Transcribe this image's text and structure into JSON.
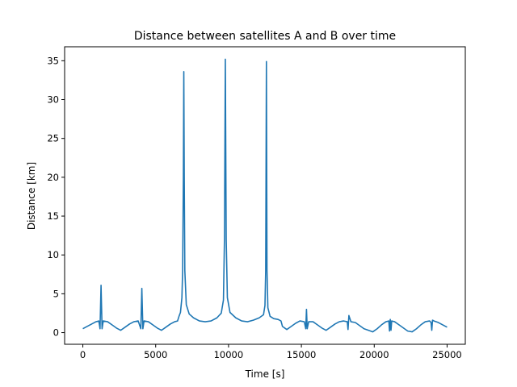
{
  "chart_data": {
    "type": "line",
    "title": "Distance between satellites A and B over time",
    "xlabel": "Time [s]",
    "ylabel": "Distance [km]",
    "xlim": [
      -1250,
      26250
    ],
    "ylim": [
      -1.5,
      36.8
    ],
    "xticks": [
      0,
      5000,
      10000,
      15000,
      20000,
      25000
    ],
    "yticks": [
      0,
      5,
      10,
      15,
      20,
      25,
      30,
      35
    ],
    "grid": false,
    "line_color": "#1f77b4",
    "series": [
      {
        "x": [
          0,
          300,
          600,
          900,
          1100,
          1180,
          1250,
          1320,
          1400,
          1700,
          2000,
          2300,
          2600,
          2900,
          3200,
          3500,
          3800,
          3980,
          4050,
          4120,
          4200,
          4500,
          4800,
          5100,
          5400,
          5700,
          6000,
          6300,
          6500,
          6600,
          6700,
          6800,
          6850,
          6900,
          6930,
          6960,
          7000,
          7100,
          7300,
          7600,
          8000,
          8400,
          8800,
          9200,
          9500,
          9650,
          9720,
          9780,
          9840,
          9920,
          10100,
          10500,
          10900,
          11300,
          11700,
          12100,
          12400,
          12500,
          12550,
          12600,
          12640,
          12700,
          12850,
          13100,
          13400,
          13600,
          13700,
          14000,
          14300,
          14600,
          14900,
          15200,
          15300,
          15350,
          15400,
          15500,
          15800,
          16100,
          16400,
          16700,
          17000,
          17300,
          17600,
          17900,
          18150,
          18200,
          18260,
          18400,
          18700,
          19000,
          19300,
          19600,
          19900,
          20200,
          20500,
          20800,
          21000,
          21050,
          21100,
          21150,
          21200,
          21400,
          21700,
          22000,
          22300,
          22600,
          22900,
          23200,
          23500,
          23800,
          23900,
          23950,
          24000,
          24100,
          24400,
          24700,
          25000
        ],
        "values": [
          0.5,
          0.8,
          1.1,
          1.4,
          1.5,
          0.5,
          6.1,
          0.5,
          1.5,
          1.4,
          1.0,
          0.6,
          0.3,
          0.7,
          1.1,
          1.4,
          1.5,
          0.5,
          5.7,
          0.5,
          1.5,
          1.4,
          1.0,
          0.6,
          0.3,
          0.7,
          1.1,
          1.4,
          1.5,
          2.1,
          2.6,
          4.5,
          8.0,
          20.0,
          33.6,
          20.0,
          8.0,
          3.6,
          2.4,
          1.9,
          1.5,
          1.4,
          1.5,
          1.9,
          2.5,
          4.2,
          12.0,
          35.2,
          12.0,
          4.5,
          2.6,
          1.9,
          1.5,
          1.4,
          1.6,
          1.9,
          2.3,
          3.5,
          8.0,
          34.9,
          8.0,
          3.2,
          2.1,
          1.8,
          1.7,
          1.5,
          0.8,
          0.4,
          0.8,
          1.2,
          1.5,
          1.4,
          0.5,
          3.0,
          0.5,
          1.4,
          1.4,
          1.0,
          0.6,
          0.3,
          0.7,
          1.1,
          1.4,
          1.5,
          1.4,
          0.4,
          2.2,
          1.4,
          1.3,
          0.9,
          0.5,
          0.3,
          0.1,
          0.5,
          1.0,
          1.4,
          1.5,
          0.2,
          1.7,
          0.3,
          1.5,
          1.4,
          1.0,
          0.6,
          0.2,
          0.1,
          0.5,
          1.0,
          1.4,
          1.5,
          1.3,
          0.3,
          1.6,
          1.5,
          1.3,
          1.0,
          0.7
        ]
      }
    ]
  }
}
